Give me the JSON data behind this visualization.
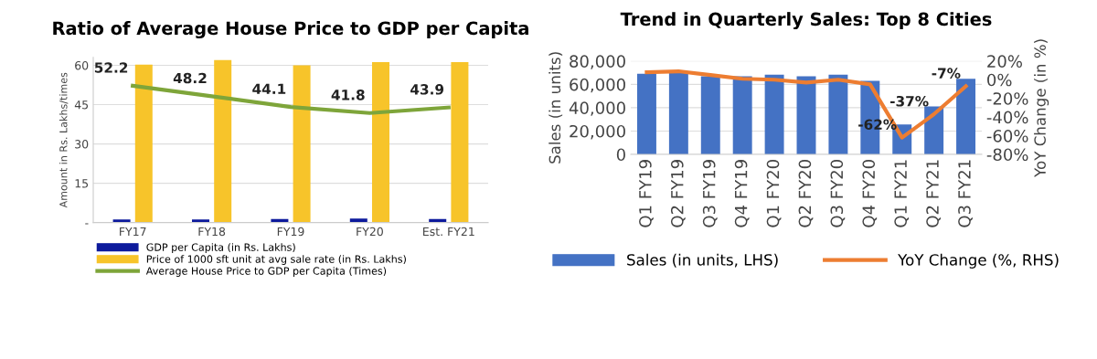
{
  "chart_data": [
    {
      "type": "bar",
      "title": "Ratio of Average House Price to GDP per Capita",
      "ylabel": "Amount in Rs. Lakhs/times",
      "categories": [
        "FY17",
        "FY18",
        "FY19",
        "FY20",
        "Est. FY21"
      ],
      "series": [
        {
          "name": "GDP per Capita (in Rs. Lakhs)",
          "color": "#0d1a9c",
          "values": [
            1.2,
            1.2,
            1.4,
            1.5,
            1.4
          ]
        },
        {
          "name": "Price of 1000 sft unit at avg sale rate (in Rs. Lakhs)",
          "color": "#f7c42a",
          "values": [
            60.3,
            62,
            60,
            61.2,
            61.2
          ]
        },
        {
          "name": "Average House Price to GDP per Capita (Times)",
          "type": "line",
          "color": "#7ea53a",
          "values": [
            52.2,
            48.2,
            44.1,
            41.8,
            43.9
          ],
          "value_labels": [
            "52.2",
            "48.2",
            "44.1",
            "41.8",
            "43.9"
          ]
        }
      ],
      "ylim": [
        0,
        63
      ],
      "yticks": [
        {
          "value": 0,
          "label": "-"
        },
        15,
        30,
        45,
        60
      ],
      "grid": "y",
      "legend": "bottom",
      "marker": "none",
      "line_style": "solid"
    },
    {
      "type": "bar",
      "title": "Trend in Quarterly Sales: Top 8 Cities",
      "ylabel": "Sales (in units)",
      "y2label": "YoY Change (in %)",
      "categories": [
        "Q1 FY19",
        "Q2 FY19",
        "Q3 FY19",
        "Q4 FY19",
        "Q1 FY20",
        "Q2 FY20",
        "Q3 FY20",
        "Q4 FY20",
        "Q1 FY21",
        "Q2 FY21",
        "Q3 FY21"
      ],
      "series": [
        {
          "name": "Sales (in units, LHS)",
          "color": "#4472c4",
          "values": [
            69000,
            70000,
            67000,
            67000,
            68400,
            67000,
            68400,
            63000,
            25600,
            41000,
            64700
          ]
        },
        {
          "name": "YoY Change (%, RHS)",
          "type": "line",
          "axis": "y2",
          "color": "#ed7d31",
          "values": [
            8,
            9,
            5,
            1,
            0,
            -3,
            0,
            -5,
            -62,
            -37,
            -7
          ],
          "value_labels": [
            null,
            null,
            null,
            null,
            null,
            null,
            null,
            null,
            "-62%",
            "-37%",
            "-7%"
          ]
        }
      ],
      "ylim": [
        0,
        80000
      ],
      "yticks": [
        0,
        {
          "value": 20000,
          "label": "20,000"
        },
        {
          "value": 40000,
          "label": "40,000"
        },
        {
          "value": 60000,
          "label": "60,000"
        },
        {
          "value": 80000,
          "label": "80,000"
        }
      ],
      "y2lim": [
        -80,
        20
      ],
      "y2ticks": [
        {
          "value": -80,
          "label": "-80%"
        },
        {
          "value": -60,
          "label": "-60%"
        },
        {
          "value": -40,
          "label": "-40%"
        },
        {
          "value": -20,
          "label": "-20%"
        },
        {
          "value": 0,
          "label": "0%"
        },
        {
          "value": 20,
          "label": "20%"
        }
      ],
      "grid": "y",
      "legend": "bottom",
      "marker": "none",
      "line_style": "solid"
    }
  ]
}
